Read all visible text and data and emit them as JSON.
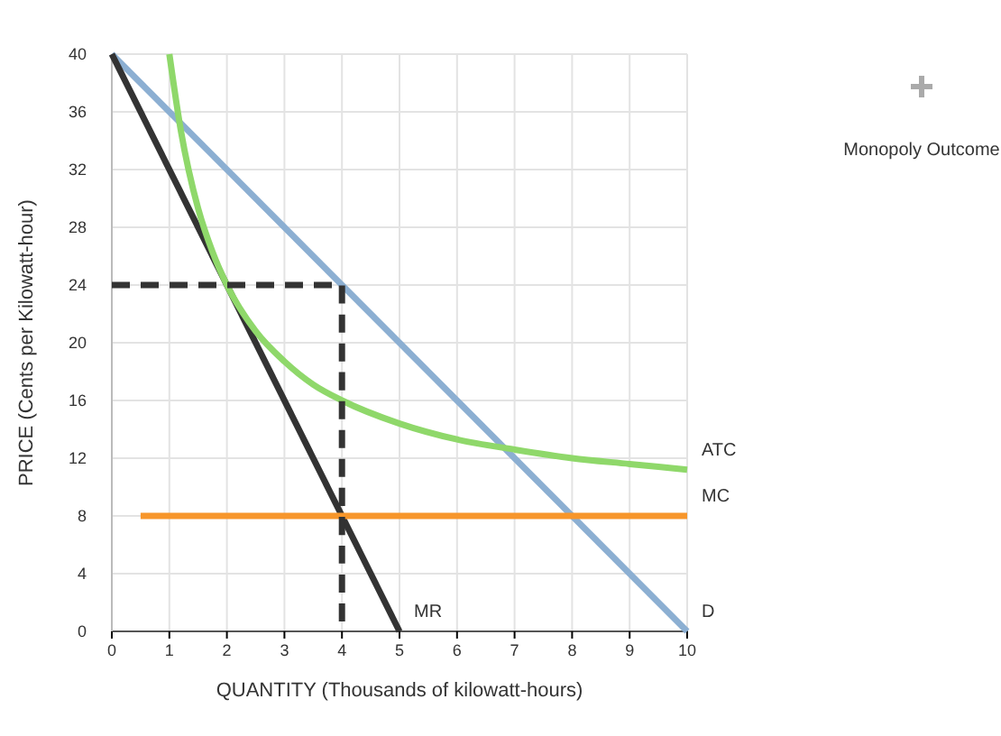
{
  "chart_data": {
    "type": "line",
    "xlabel": "QUANTITY (Thousands of kilowatt-hours)",
    "ylabel": "PRICE (Cents per Kilowatt-hour)",
    "xlim": [
      0,
      10
    ],
    "ylim": [
      0,
      40
    ],
    "xticks": [
      0,
      1,
      2,
      3,
      4,
      5,
      6,
      7,
      8,
      9,
      10
    ],
    "yticks": [
      0,
      4,
      8,
      12,
      16,
      20,
      24,
      28,
      32,
      36,
      40
    ],
    "grid": true,
    "marker": "none",
    "series": [
      {
        "name": "D",
        "color": "#8cafd2",
        "x": [
          0,
          10
        ],
        "values": [
          40,
          0
        ]
      },
      {
        "name": "MR",
        "color": "#333333",
        "x": [
          0,
          5
        ],
        "values": [
          40,
          0
        ]
      },
      {
        "name": "ATC",
        "color": "#8fd86a",
        "x": [
          1,
          1.2,
          1.5,
          1.75,
          2,
          2.5,
          3,
          3.5,
          4,
          5,
          6,
          7,
          8,
          9,
          10
        ],
        "values": [
          40,
          34.7,
          29.3,
          26.3,
          24,
          20.8,
          18.7,
          17.1,
          16,
          14.4,
          13.3,
          12.6,
          12,
          11.6,
          11.2
        ]
      },
      {
        "name": "MC",
        "color": "#f7962a",
        "x": [
          0.5,
          10
        ],
        "values": [
          8,
          8
        ]
      },
      {
        "color": "#333333",
        "line_style": "dashed",
        "x": [
          0,
          4,
          4
        ],
        "values": [
          24,
          24,
          0
        ]
      }
    ],
    "annotations": [
      "Monopoly Outcome"
    ]
  }
}
